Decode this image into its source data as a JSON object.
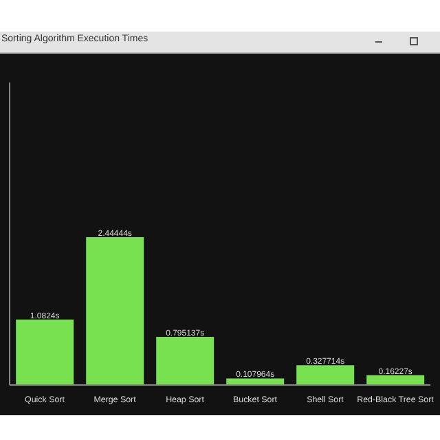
{
  "chart_data": {
    "type": "bar",
    "title": "Sorting Algorithm Execution Times",
    "categories": [
      "Quick Sort",
      "Merge Sort",
      "Heap Sort",
      "Bucket Sort",
      "Shell Sort",
      "Red-Black Tree Sort"
    ],
    "values": [
      1.0824,
      2.44444,
      0.795137,
      0.107964,
      0.327714,
      0.16227
    ],
    "value_labels": [
      "1.0824s",
      "2.44444s",
      "0.795137s",
      "0.107964s",
      "0.327714s",
      "0.16227s"
    ],
    "color": "#77e150",
    "ylim": [
      0,
      5
    ],
    "tick_labels": "x",
    "grid": false,
    "legend": false
  }
}
